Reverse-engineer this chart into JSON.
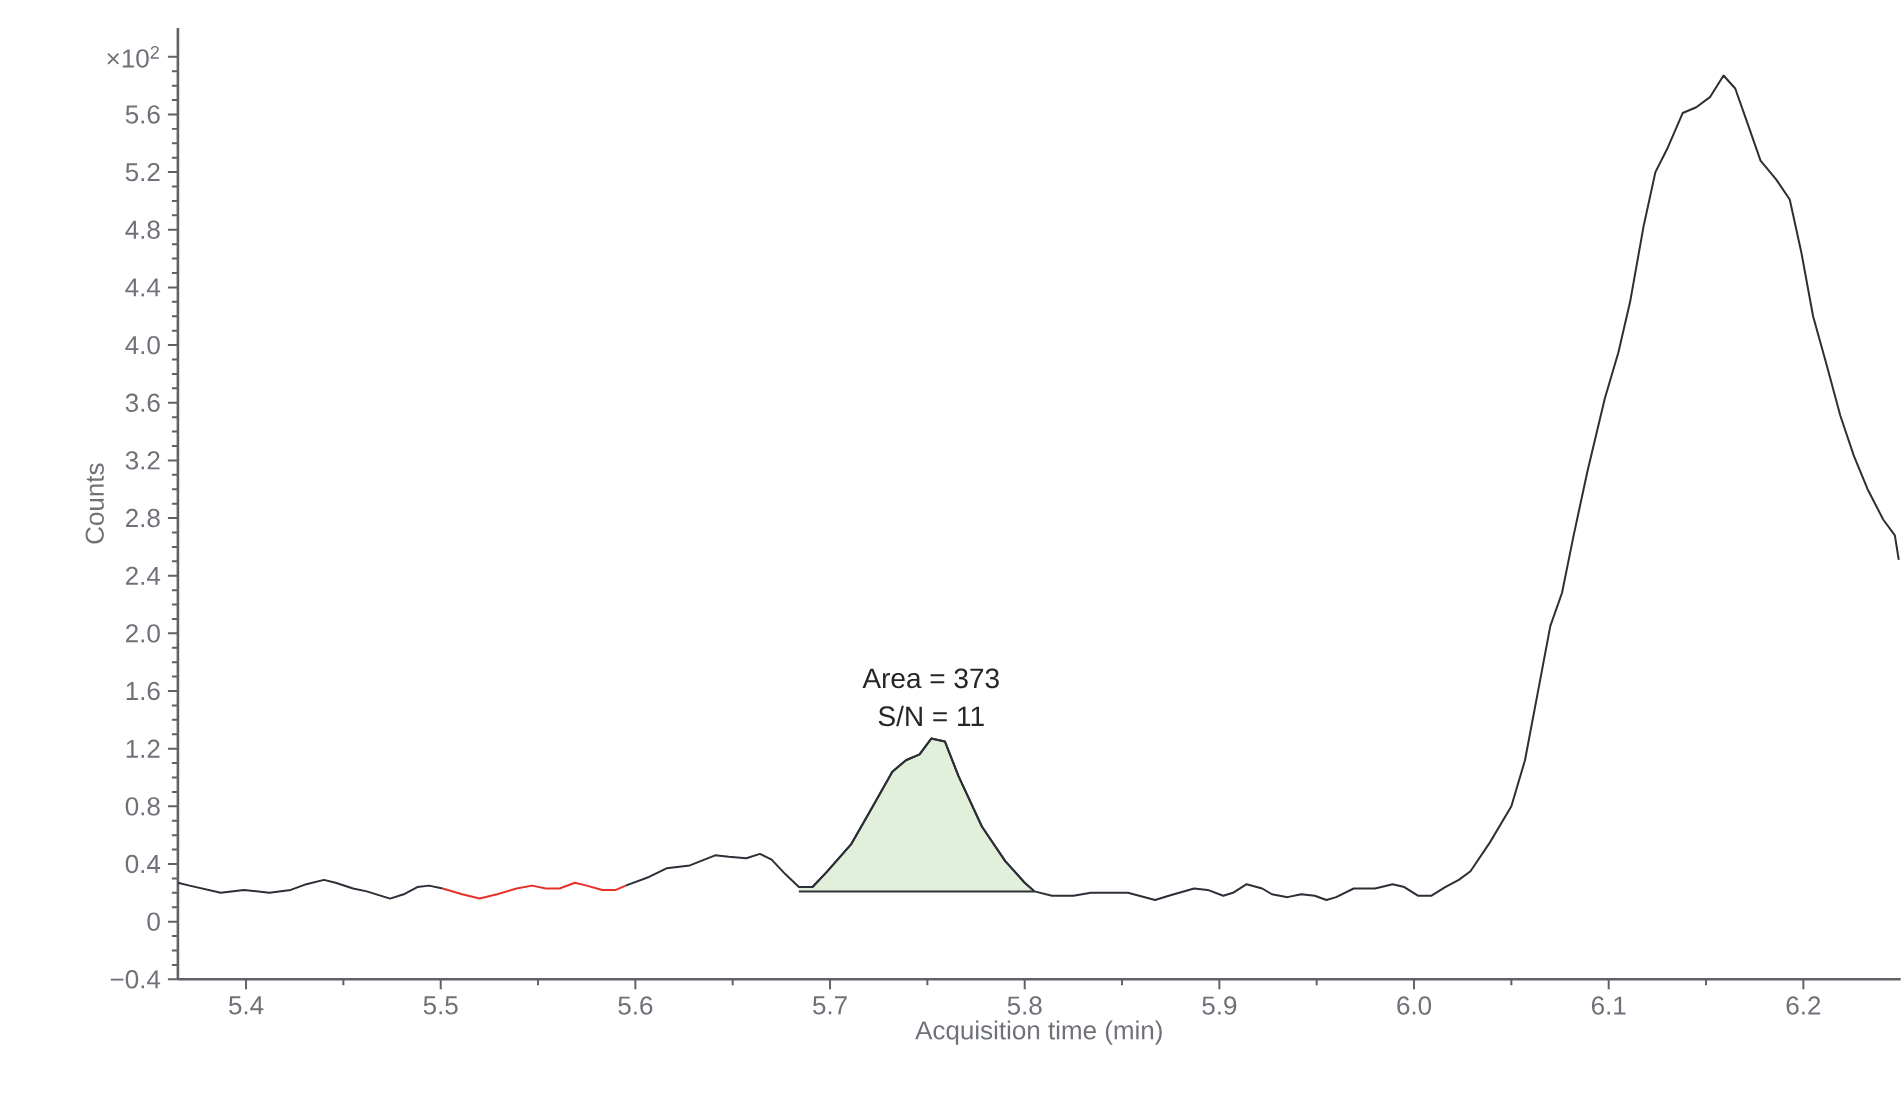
{
  "chart_data": {
    "type": "line",
    "xlabel": "Acquisition time (min)",
    "ylabel": "Counts",
    "xlim": [
      5.365,
      6.25
    ],
    "ylim": [
      -0.4,
      6.2
    ],
    "xticks": [
      5.4,
      5.5,
      5.6,
      5.7,
      5.8,
      5.9,
      {
        "value": 6.0,
        "label": "6.0"
      },
      6.1,
      6.2
    ],
    "yticks": [
      {
        "value": -0.4,
        "label": "−0.4"
      },
      0,
      0.4,
      0.8,
      1.2,
      1.6,
      {
        "value": 2.0,
        "label": "2.0"
      },
      2.4,
      2.8,
      3.2,
      3.6,
      {
        "value": 4.0,
        "label": "4.0"
      },
      4.4,
      4.8,
      5.2,
      5.6,
      {
        "value": 6.0,
        "label": "×10$^{2}$"
      }
    ],
    "series": [
      {
        "type": "area",
        "color": "#e2efda",
        "x": [
          5.684,
          5.691,
          5.698,
          5.711,
          5.722,
          5.732,
          5.739,
          5.746,
          5.752,
          5.759,
          5.766,
          5.778,
          5.79,
          5.8,
          5.805
        ],
        "values": [
          0.24,
          0.24,
          0.34,
          0.54,
          0.8,
          1.04,
          1.12,
          1.16,
          1.27,
          1.25,
          1.01,
          0.66,
          0.42,
          0.27,
          0.21
        ]
      },
      {
        "color": "#2b2f36",
        "x": [
          5.365,
          5.371,
          5.387,
          5.399,
          5.412,
          5.423,
          5.431,
          5.44,
          5.446,
          5.455,
          5.462,
          5.474,
          5.481,
          5.488,
          5.494,
          5.501,
          5.55,
          5.595,
          5.607,
          5.616,
          5.628,
          5.641,
          5.648,
          5.657,
          5.664,
          5.67,
          5.677,
          5.684,
          5.691,
          5.698,
          5.711,
          5.722,
          5.732,
          5.739,
          5.746,
          5.752,
          5.759,
          5.766,
          5.778,
          5.79,
          5.8,
          5.805,
          5.814,
          5.825,
          5.834,
          5.845,
          5.853,
          5.867,
          5.874,
          5.887,
          5.894,
          5.902,
          5.907,
          5.914,
          5.922,
          5.927,
          5.935,
          5.942,
          5.949,
          5.955,
          5.96,
          5.969,
          5.98,
          5.989,
          5.995,
          6.002,
          6.009,
          6.016,
          6.023,
          6.029,
          6.039,
          6.05,
          6.057,
          6.064,
          6.07,
          6.076,
          6.082,
          6.089,
          6.098,
          6.105,
          6.111,
          6.118,
          6.124,
          6.13,
          6.138,
          6.145,
          6.152,
          6.159,
          6.165,
          6.171,
          6.178,
          6.186,
          6.193,
          6.199,
          6.205,
          6.212,
          6.219,
          6.226,
          6.233,
          6.241,
          6.247,
          6.249
        ],
        "values": [
          0.27,
          0.25,
          0.2,
          0.22,
          0.2,
          0.22,
          0.26,
          0.29,
          0.27,
          0.23,
          0.21,
          0.16,
          0.19,
          0.24,
          0.25,
          0.23,
          null,
          0.25,
          0.31,
          0.37,
          0.39,
          0.46,
          0.45,
          0.44,
          0.47,
          0.43,
          0.33,
          0.24,
          0.24,
          0.34,
          0.54,
          0.8,
          1.04,
          1.12,
          1.16,
          1.27,
          1.25,
          1.01,
          0.66,
          0.42,
          0.27,
          0.21,
          0.18,
          0.18,
          0.2,
          0.2,
          0.2,
          0.15,
          0.18,
          0.23,
          0.22,
          0.18,
          0.2,
          0.26,
          0.23,
          0.19,
          0.17,
          0.19,
          0.18,
          0.15,
          0.17,
          0.23,
          0.23,
          0.26,
          0.24,
          0.18,
          0.18,
          0.24,
          0.29,
          0.35,
          0.55,
          0.8,
          1.12,
          1.62,
          2.05,
          2.28,
          2.68,
          3.12,
          3.63,
          3.95,
          4.3,
          4.83,
          5.2,
          5.36,
          5.61,
          5.65,
          5.72,
          5.87,
          5.78,
          5.55,
          5.28,
          5.15,
          5.01,
          4.64,
          4.2,
          3.86,
          3.51,
          3.23,
          3.0,
          2.79,
          2.68,
          2.51
        ]
      },
      {
        "color": "#e8302a",
        "x": [
          5.501,
          5.511,
          5.52,
          5.529,
          5.539,
          5.547,
          5.554,
          5.561,
          5.569,
          5.575,
          5.583,
          5.59,
          5.595
        ],
        "values": [
          0.23,
          0.19,
          0.16,
          0.19,
          0.23,
          0.25,
          0.23,
          0.23,
          0.27,
          0.25,
          0.22,
          0.22,
          0.25
        ]
      }
    ],
    "annotations": [
      {
        "text": "Area = 373",
        "x": 5.752,
        "y": 1.27
      },
      {
        "text": "S/N = 11",
        "x": 5.752,
        "y": 1.27
      }
    ]
  }
}
